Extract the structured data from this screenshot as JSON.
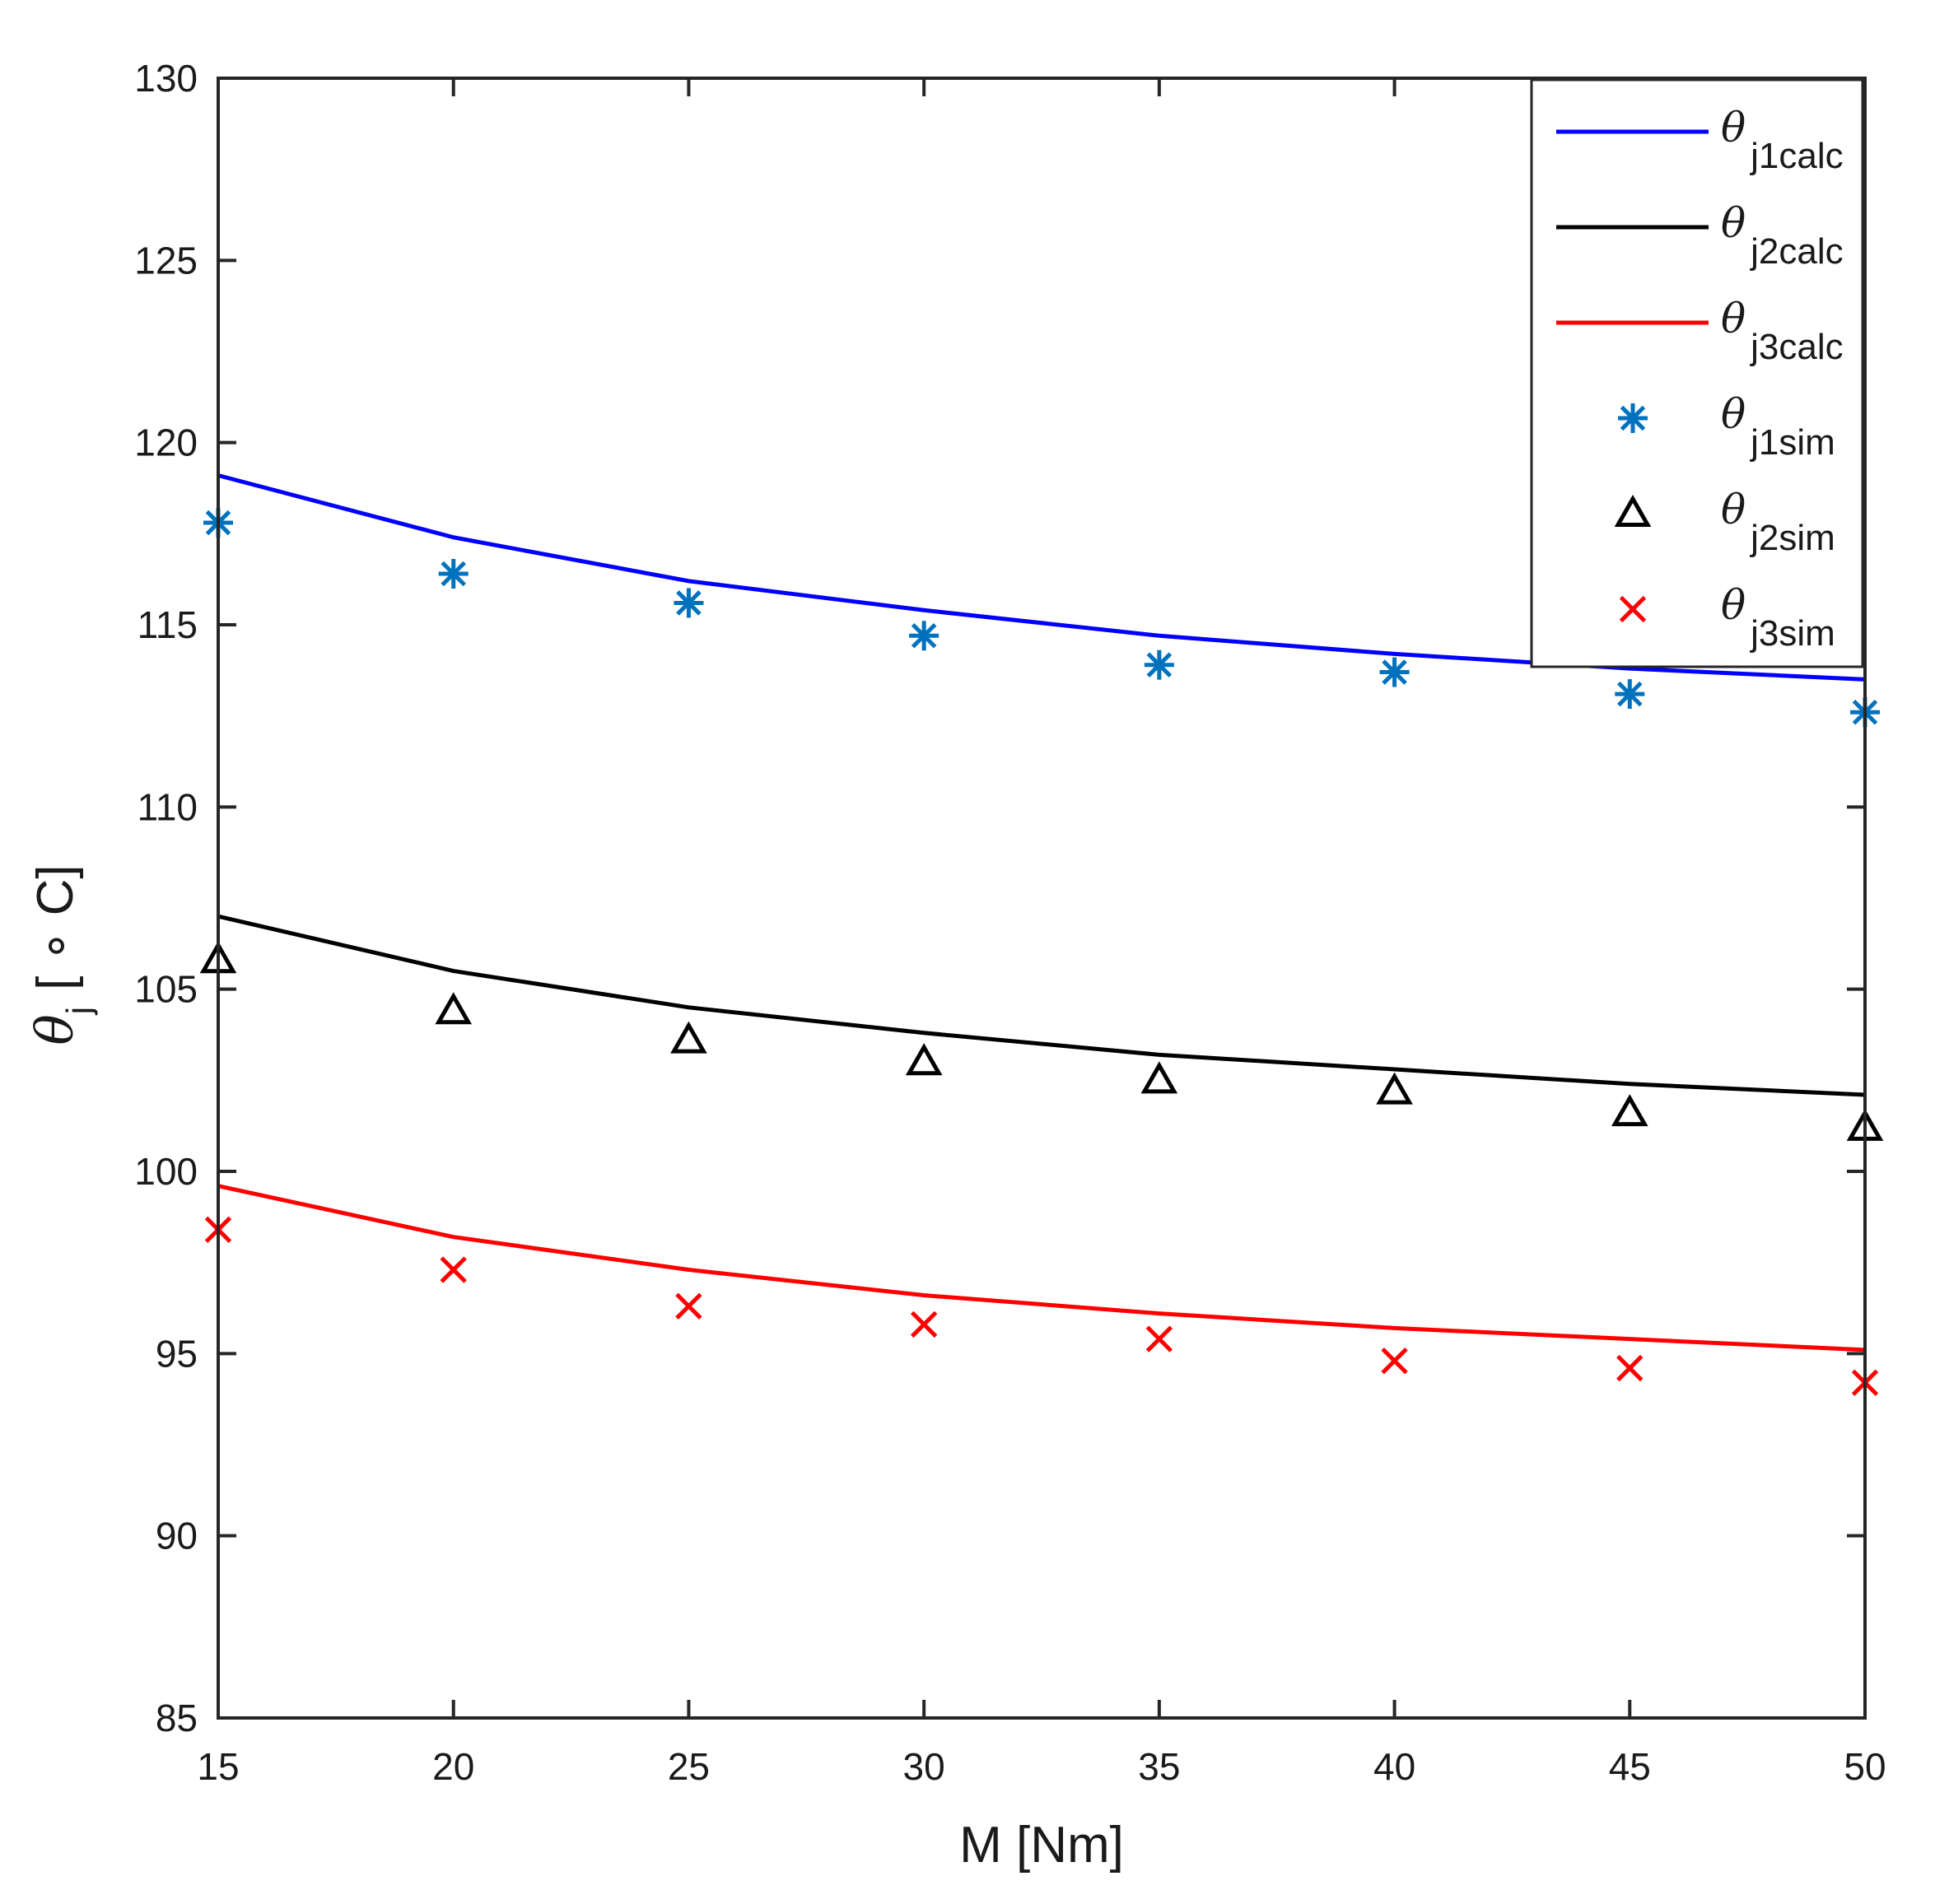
{
  "chart_data": {
    "type": "line",
    "title": "",
    "xlabel": "M [Nm]",
    "ylabel": {
      "symbol": "θ",
      "subscript": "j",
      "unit": "[ ∘ C]"
    },
    "xlim": [
      15,
      50
    ],
    "ylim": [
      85,
      130
    ],
    "xticks": [
      "15",
      "20",
      "25",
      "30",
      "35",
      "40",
      "45",
      "50"
    ],
    "yticks": [
      "85",
      "90",
      "95",
      "100",
      "105",
      "110",
      "115",
      "120",
      "125",
      "130"
    ],
    "grid": false,
    "legend_position": "top-right",
    "x": [
      15,
      20,
      25,
      30,
      35,
      40,
      45,
      50
    ],
    "series": [
      {
        "name": "θ",
        "sub": "j1calc",
        "kind": "line",
        "color": "#0000ff",
        "values": [
          119.1,
          117.4,
          116.2,
          115.4,
          114.7,
          114.2,
          113.8,
          113.5
        ]
      },
      {
        "name": "θ",
        "sub": "j2calc",
        "kind": "line",
        "color": "#000000",
        "values": [
          107.0,
          105.5,
          104.5,
          103.8,
          103.2,
          102.8,
          102.4,
          102.1
        ]
      },
      {
        "name": "θ",
        "sub": "j3calc",
        "kind": "line",
        "color": "#ff0000",
        "values": [
          99.6,
          98.2,
          97.3,
          96.6,
          96.1,
          95.7,
          95.4,
          95.1
        ]
      },
      {
        "name": "θ",
        "sub": "j1sim",
        "kind": "marker",
        "marker": "asterisk",
        "color": "#0072bd",
        "values": [
          117.8,
          116.4,
          115.6,
          114.7,
          113.9,
          113.7,
          113.1,
          112.6
        ]
      },
      {
        "name": "θ",
        "sub": "j2sim",
        "kind": "marker",
        "marker": "triangle",
        "color": "#000000",
        "values": [
          105.8,
          104.4,
          103.6,
          103.0,
          102.5,
          102.2,
          101.6,
          101.2
        ]
      },
      {
        "name": "θ",
        "sub": "j3sim",
        "kind": "marker",
        "marker": "cross",
        "color": "#ff0000",
        "values": [
          98.4,
          97.3,
          96.3,
          95.8,
          95.4,
          94.8,
          94.6,
          94.2
        ]
      }
    ]
  }
}
